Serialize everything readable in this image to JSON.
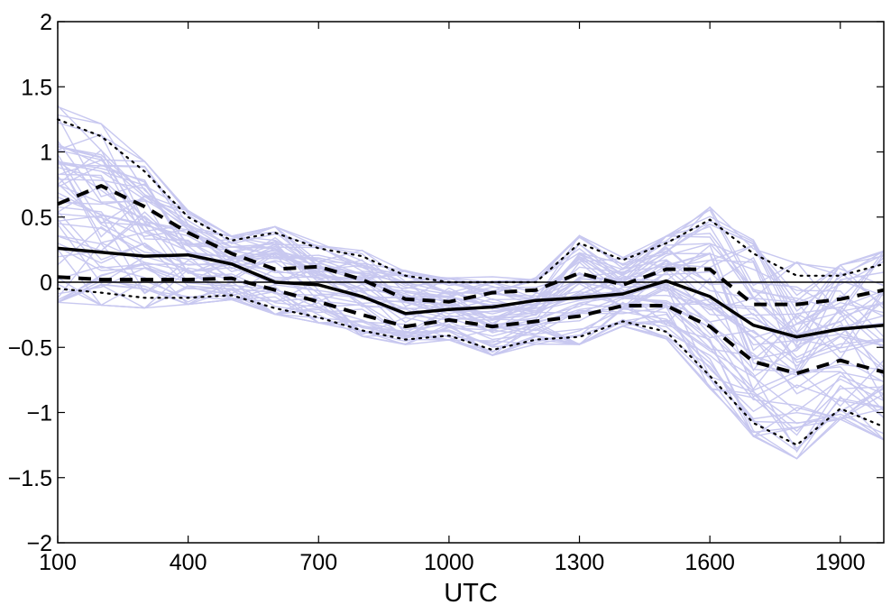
{
  "chart_data": {
    "type": "line",
    "title": "",
    "xlabel": "UTC",
    "ylabel": "",
    "xlim": [
      100,
      2000
    ],
    "ylim": [
      -2,
      2
    ],
    "xticks": [
      100,
      400,
      700,
      1000,
      1300,
      1600,
      1900
    ],
    "yticks": [
      -2,
      -1.5,
      -1,
      -0.5,
      0,
      0.5,
      1,
      1.5,
      2
    ],
    "xtick_labels": [
      "100",
      "400",
      "700",
      "1000",
      "1300",
      "1600",
      "1900"
    ],
    "ytick_labels": [
      "−2",
      "−1.5",
      "−1",
      "−0.5",
      "0",
      "0.5",
      "1",
      "1.5",
      "2"
    ],
    "grid": false,
    "zero_line": 0,
    "ensemble_color": "#c8c8f0",
    "ensemble_count": 60,
    "x": [
      100,
      200,
      300,
      400,
      500,
      600,
      700,
      800,
      900,
      1000,
      1100,
      1200,
      1300,
      1400,
      1500,
      1600,
      1700,
      1800,
      1900,
      2000
    ],
    "series": [
      {
        "style": "dotted",
        "values": [
          1.25,
          1.12,
          0.85,
          0.5,
          0.32,
          0.38,
          0.26,
          0.2,
          0.05,
          0.0,
          0.0,
          0.0,
          0.3,
          0.17,
          0.3,
          0.48,
          0.22,
          0.05,
          0.05,
          0.14
        ]
      },
      {
        "style": "dashed",
        "values": [
          0.6,
          0.74,
          0.58,
          0.38,
          0.22,
          0.1,
          0.12,
          0.02,
          -0.13,
          -0.15,
          -0.08,
          -0.06,
          0.07,
          -0.02,
          0.1,
          0.1,
          -0.17,
          -0.17,
          -0.13,
          -0.06
        ]
      },
      {
        "style": "solid",
        "values": [
          0.26,
          0.23,
          0.2,
          0.21,
          0.14,
          0.0,
          -0.02,
          -0.11,
          -0.24,
          -0.21,
          -0.19,
          -0.14,
          -0.12,
          -0.09,
          0.01,
          -0.11,
          -0.33,
          -0.42,
          -0.36,
          -0.33
        ]
      },
      {
        "style": "dashed",
        "values": [
          0.04,
          0.02,
          0.02,
          0.02,
          0.03,
          -0.06,
          -0.15,
          -0.25,
          -0.34,
          -0.29,
          -0.34,
          -0.3,
          -0.26,
          -0.18,
          -0.18,
          -0.34,
          -0.61,
          -0.7,
          -0.6,
          -0.69
        ]
      },
      {
        "style": "dotted",
        "values": [
          -0.05,
          -0.08,
          -0.12,
          -0.12,
          -0.1,
          -0.2,
          -0.27,
          -0.37,
          -0.44,
          -0.41,
          -0.52,
          -0.44,
          -0.42,
          -0.3,
          -0.38,
          -0.72,
          -1.08,
          -1.25,
          -0.97,
          -1.11
        ]
      }
    ]
  }
}
